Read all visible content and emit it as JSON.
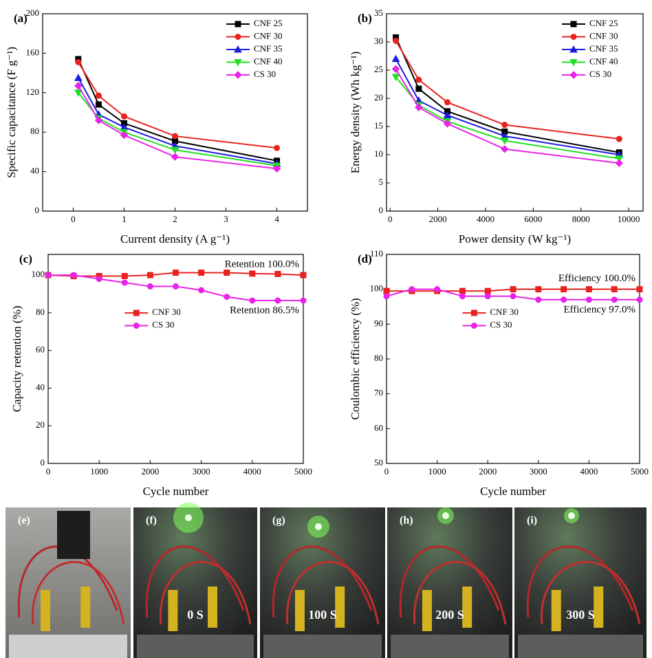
{
  "chart_data": [
    {
      "type": "line",
      "panel_label": "(a)",
      "xlabel": "Current density (A g⁻¹)",
      "ylabel": "Specific capacitance (F g⁻¹)",
      "x": [
        0.1,
        0.5,
        1,
        2,
        4
      ],
      "xlim": [
        -0.6,
        4.6
      ],
      "xticks": [
        0,
        1,
        2,
        3,
        4
      ],
      "ylim": [
        0,
        200
      ],
      "yticks": [
        0,
        40,
        80,
        120,
        160,
        200
      ],
      "legend_position": "upper right",
      "series": [
        {
          "name": "CNF 25",
          "color": "#000000",
          "marker": "square",
          "values": [
            154,
            108,
            89,
            71,
            51
          ]
        },
        {
          "name": "CNF 30",
          "color": "#e8231f",
          "marker": "circle",
          "values": [
            151,
            117,
            96,
            76,
            64
          ]
        },
        {
          "name": "CNF 35",
          "color": "#1c1ce0",
          "marker": "triangle-up",
          "values": [
            135,
            98,
            85,
            66,
            48
          ]
        },
        {
          "name": "CNF 40",
          "color": "#21e021",
          "marker": "triangle-down",
          "values": [
            120,
            94,
            80,
            62,
            46
          ]
        },
        {
          "name": "CS 30",
          "color": "#e822e8",
          "marker": "diamond",
          "values": [
            127,
            92,
            77,
            55,
            43
          ]
        }
      ]
    },
    {
      "type": "line",
      "panel_label": "(b)",
      "xlabel": "Power density (W kg⁻¹)",
      "ylabel": "Energy density (Wh kg⁻¹)",
      "x": [
        240,
        1200,
        2400,
        4800,
        9600
      ],
      "xlim": [
        -150,
        10600
      ],
      "xticks": [
        0,
        2000,
        4000,
        6000,
        8000,
        10000
      ],
      "ylim": [
        0,
        35
      ],
      "yticks": [
        0,
        5,
        10,
        15,
        20,
        25,
        30,
        35
      ],
      "legend_position": "upper right",
      "series": [
        {
          "name": "CNF 25",
          "color": "#000000",
          "marker": "square",
          "values": [
            30.8,
            21.7,
            17.7,
            14.1,
            10.4
          ]
        },
        {
          "name": "CNF 30",
          "color": "#e8231f",
          "marker": "circle",
          "values": [
            30.2,
            23.3,
            19.3,
            15.3,
            12.8
          ]
        },
        {
          "name": "CNF 35",
          "color": "#1c1ce0",
          "marker": "triangle-up",
          "values": [
            27.0,
            19.6,
            17.0,
            13.3,
            10.0
          ]
        },
        {
          "name": "CNF 40",
          "color": "#21e021",
          "marker": "triangle-down",
          "values": [
            23.8,
            18.8,
            15.9,
            12.5,
            9.3
          ]
        },
        {
          "name": "CS 30",
          "color": "#e822e8",
          "marker": "diamond",
          "values": [
            25.2,
            18.4,
            15.5,
            11.0,
            8.5
          ]
        }
      ]
    },
    {
      "type": "line",
      "panel_label": "(c)",
      "xlabel": "Cycle number",
      "ylabel": "Capacity retention (%)",
      "x": [
        0,
        500,
        1000,
        1500,
        2000,
        2500,
        3000,
        3500,
        4000,
        4500,
        5000
      ],
      "xlim": [
        0,
        5000
      ],
      "xticks": [
        0,
        1000,
        2000,
        3000,
        4000,
        5000
      ],
      "ylim": [
        0,
        111
      ],
      "yticks": [
        0,
        20,
        40,
        60,
        80,
        100
      ],
      "legend_position": "center",
      "series": [
        {
          "name": "CNF 30",
          "color": "#e8231f",
          "marker": "square",
          "values": [
            100,
            99.5,
            99.5,
            99.5,
            100,
            101.3,
            101.3,
            101.3,
            100.8,
            100.6,
            100.0
          ]
        },
        {
          "name": "CS 30",
          "color": "#e822e8",
          "marker": "circle",
          "values": [
            100,
            100,
            98,
            96,
            94,
            94,
            92,
            88.5,
            86.5,
            86.5,
            86.5
          ]
        }
      ],
      "annotations": [
        "Retention 100.0%",
        "Retention 86.5%"
      ]
    },
    {
      "type": "line",
      "panel_label": "(d)",
      "xlabel": "Cycle number",
      "ylabel": "Coulombic efficiency (%)",
      "x": [
        0,
        500,
        1000,
        1500,
        2000,
        2500,
        3000,
        3500,
        4000,
        4500,
        5000
      ],
      "xlim": [
        0,
        5000
      ],
      "xticks": [
        0,
        1000,
        2000,
        3000,
        4000,
        5000
      ],
      "ylim": [
        50,
        110
      ],
      "yticks": [
        50,
        60,
        70,
        80,
        90,
        100,
        110
      ],
      "legend_position": "center",
      "series": [
        {
          "name": "CNF 30",
          "color": "#e8231f",
          "marker": "square",
          "values": [
            99.5,
            99.5,
            99.5,
            99.5,
            99.5,
            100,
            100,
            100,
            100,
            100,
            100
          ]
        },
        {
          "name": "CS 30",
          "color": "#e822e8",
          "marker": "circle",
          "values": [
            98,
            100,
            100,
            98,
            98,
            98,
            97,
            97,
            97,
            97,
            97
          ]
        }
      ],
      "annotations": [
        "Efficiency 100.0%",
        "Efficiency 97.0%"
      ]
    }
  ],
  "photos": [
    {
      "label": "(e)"
    },
    {
      "label": "(f)",
      "caption": "0 S"
    },
    {
      "label": "(g)",
      "caption": "100 S"
    },
    {
      "label": "(h)",
      "caption": "200 S"
    },
    {
      "label": "(i)",
      "caption": "300 S"
    }
  ]
}
